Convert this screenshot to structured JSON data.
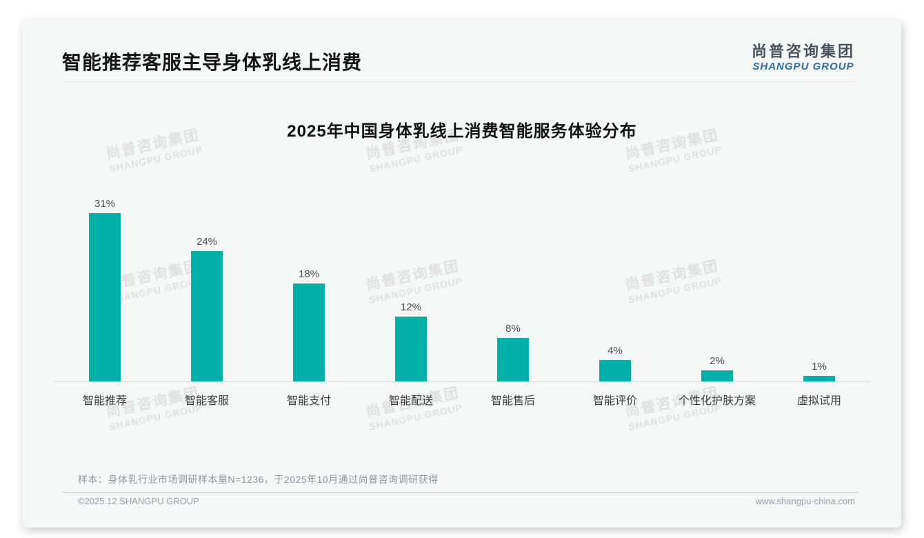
{
  "header": {
    "title": "智能推荐客服主导身体乳线上消费",
    "logo_cn": "尚普咨询集团",
    "logo_en": "SHANGPU GROUP"
  },
  "watermark": {
    "line1": "尚普咨询集团",
    "line2": "SHANGPU GROUP"
  },
  "chart_data": {
    "type": "bar",
    "title": "2025年中国身体乳线上消费智能服务体验分布",
    "categories": [
      "智能推荐",
      "智能客服",
      "智能支付",
      "智能配送",
      "智能售后",
      "智能评价",
      "个性化护肤方案",
      "虚拟试用"
    ],
    "values": [
      31,
      24,
      18,
      12,
      8,
      4,
      2,
      1
    ],
    "value_labels": [
      "31%",
      "24%",
      "18%",
      "12%",
      "8%",
      "4%",
      "2%",
      "1%"
    ],
    "unit": "%",
    "bar_color": "#00b1a9",
    "ylim": [
      0,
      35
    ],
    "grid": false,
    "legend": false,
    "xlabel": "",
    "ylabel": ""
  },
  "note": "样本：身体乳行业市场调研样本量N=1236，于2025年10月通过尚普咨询调研获得",
  "footer": {
    "left": "©2025.12 SHANGPU GROUP",
    "right": "www.shangpu-china.com"
  }
}
